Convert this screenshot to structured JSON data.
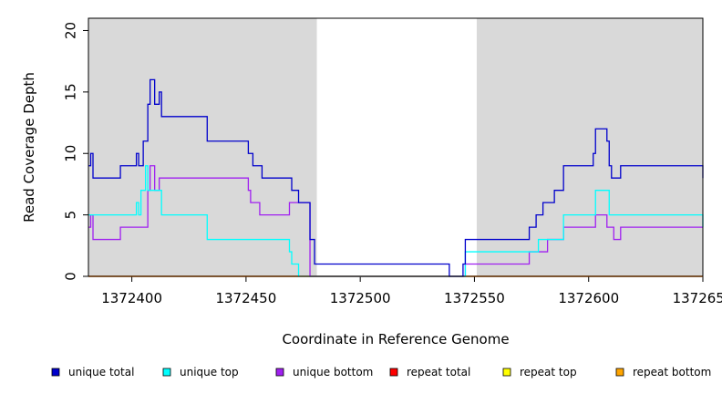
{
  "chart_data": {
    "type": "line",
    "step": true,
    "xlabel": "Coordinate in Reference Genome",
    "ylabel": "Read Coverage Depth",
    "xlim": [
      1372381,
      1372650
    ],
    "ylim": [
      0,
      21
    ],
    "xticks": [
      {
        "value": 1372400,
        "label": "1372400"
      },
      {
        "value": 1372450,
        "label": "1372450"
      },
      {
        "value": 1372500,
        "label": "1372500"
      },
      {
        "value": 1372550,
        "label": "1372550"
      },
      {
        "value": 1372600,
        "label": "1372600"
      },
      {
        "value": 1372650,
        "label": "1372650"
      }
    ],
    "yticks": [
      {
        "value": 0,
        "label": "0"
      },
      {
        "value": 5,
        "label": "5"
      },
      {
        "value": 10,
        "label": "10"
      },
      {
        "value": 15,
        "label": "15"
      },
      {
        "value": 20,
        "label": "20"
      }
    ],
    "shaded_regions": [
      {
        "x0": 1372381,
        "x1": 1372481,
        "color": "#d9d9d9"
      },
      {
        "x0": 1372551,
        "x1": 1372650,
        "color": "#d9d9d9"
      }
    ],
    "series": [
      {
        "name": "unique total",
        "color": "#0000cc",
        "points": [
          [
            1372381,
            9
          ],
          [
            1372382,
            10
          ],
          [
            1372383,
            8
          ],
          [
            1372395,
            9
          ],
          [
            1372402,
            10
          ],
          [
            1372403,
            9
          ],
          [
            1372405,
            11
          ],
          [
            1372407,
            14
          ],
          [
            1372408,
            16
          ],
          [
            1372410,
            14
          ],
          [
            1372412,
            15
          ],
          [
            1372413,
            13
          ],
          [
            1372433,
            11
          ],
          [
            1372451,
            10
          ],
          [
            1372453,
            9
          ],
          [
            1372457,
            8
          ],
          [
            1372465,
            8
          ],
          [
            1372470,
            7
          ],
          [
            1372473,
            6
          ],
          [
            1372478,
            3
          ],
          [
            1372480,
            1
          ],
          [
            1372539,
            0
          ],
          [
            1372545,
            1
          ],
          [
            1372546,
            3
          ],
          [
            1372574,
            4
          ],
          [
            1372577,
            5
          ],
          [
            1372580,
            6
          ],
          [
            1372585,
            7
          ],
          [
            1372589,
            9
          ],
          [
            1372602,
            10
          ],
          [
            1372603,
            12
          ],
          [
            1372608,
            11
          ],
          [
            1372609,
            9
          ],
          [
            1372610,
            8
          ],
          [
            1372614,
            9
          ],
          [
            1372650,
            8
          ]
        ]
      },
      {
        "name": "unique top",
        "color": "#00ffff",
        "points": [
          [
            1372381,
            5
          ],
          [
            1372402,
            6
          ],
          [
            1372403,
            5
          ],
          [
            1372404,
            7
          ],
          [
            1372406,
            9
          ],
          [
            1372407,
            7
          ],
          [
            1372413,
            5
          ],
          [
            1372433,
            3
          ],
          [
            1372469,
            2
          ],
          [
            1372470,
            1
          ],
          [
            1372473,
            0
          ],
          [
            1372544,
            0
          ],
          [
            1372546,
            2
          ],
          [
            1372573,
            2
          ],
          [
            1372578,
            3
          ],
          [
            1372582,
            3
          ],
          [
            1372589,
            5
          ],
          [
            1372598,
            5
          ],
          [
            1372603,
            7
          ],
          [
            1372609,
            5
          ],
          [
            1372650,
            4
          ]
        ]
      },
      {
        "name": "unique bottom",
        "color": "#a020f0",
        "points": [
          [
            1372381,
            4
          ],
          [
            1372382,
            5
          ],
          [
            1372383,
            3
          ],
          [
            1372395,
            4
          ],
          [
            1372407,
            7
          ],
          [
            1372408,
            9
          ],
          [
            1372410,
            7
          ],
          [
            1372412,
            8
          ],
          [
            1372451,
            7
          ],
          [
            1372452,
            6
          ],
          [
            1372456,
            5
          ],
          [
            1372469,
            6
          ],
          [
            1372473,
            6
          ],
          [
            1372478,
            0
          ],
          [
            1372546,
            1
          ],
          [
            1372574,
            2
          ],
          [
            1372582,
            3
          ],
          [
            1372589,
            4
          ],
          [
            1372603,
            5
          ],
          [
            1372608,
            4
          ],
          [
            1372611,
            3
          ],
          [
            1372614,
            4
          ],
          [
            1372650,
            4
          ]
        ]
      },
      {
        "name": "repeat total",
        "color": "#ff0000",
        "points": [
          [
            1372381,
            0
          ],
          [
            1372650,
            0
          ]
        ]
      },
      {
        "name": "repeat top",
        "color": "#ffff00",
        "points": [
          [
            1372381,
            0
          ],
          [
            1372650,
            0
          ]
        ]
      },
      {
        "name": "repeat bottom",
        "color": "#ffa500",
        "points": [
          [
            1372381,
            0
          ],
          [
            1372650,
            0
          ]
        ]
      }
    ],
    "legend_position": "bottom"
  }
}
